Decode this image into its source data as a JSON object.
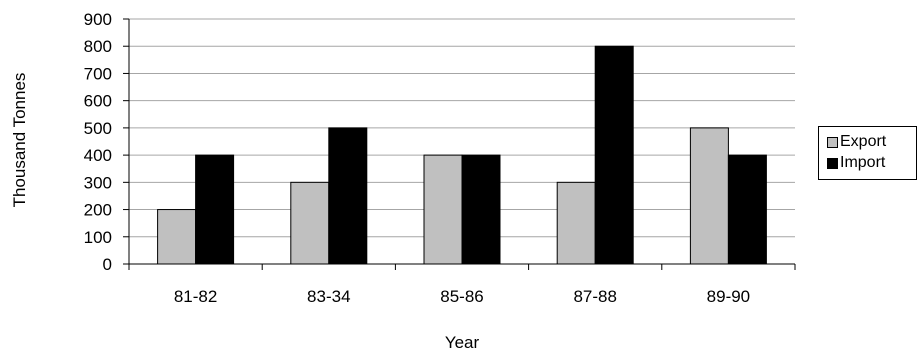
{
  "chart_data": {
    "type": "bar",
    "categories": [
      "81-82",
      "83-34",
      "85-86",
      "87-88",
      "89-90"
    ],
    "series": [
      {
        "name": "Export",
        "values": [
          200,
          300,
          400,
          300,
          500
        ],
        "color": "#c0c0c0"
      },
      {
        "name": "Import",
        "values": [
          400,
          500,
          400,
          800,
          400
        ],
        "color": "#000000"
      }
    ],
    "title": "",
    "xlabel": "Year",
    "ylabel": "Thousand Tonnes",
    "ylim": [
      0,
      900
    ],
    "yticks": [
      "0",
      "100",
      "200",
      "300",
      "400",
      "500",
      "600",
      "700",
      "800",
      "900"
    ],
    "grid": true,
    "legend_position": "right"
  }
}
